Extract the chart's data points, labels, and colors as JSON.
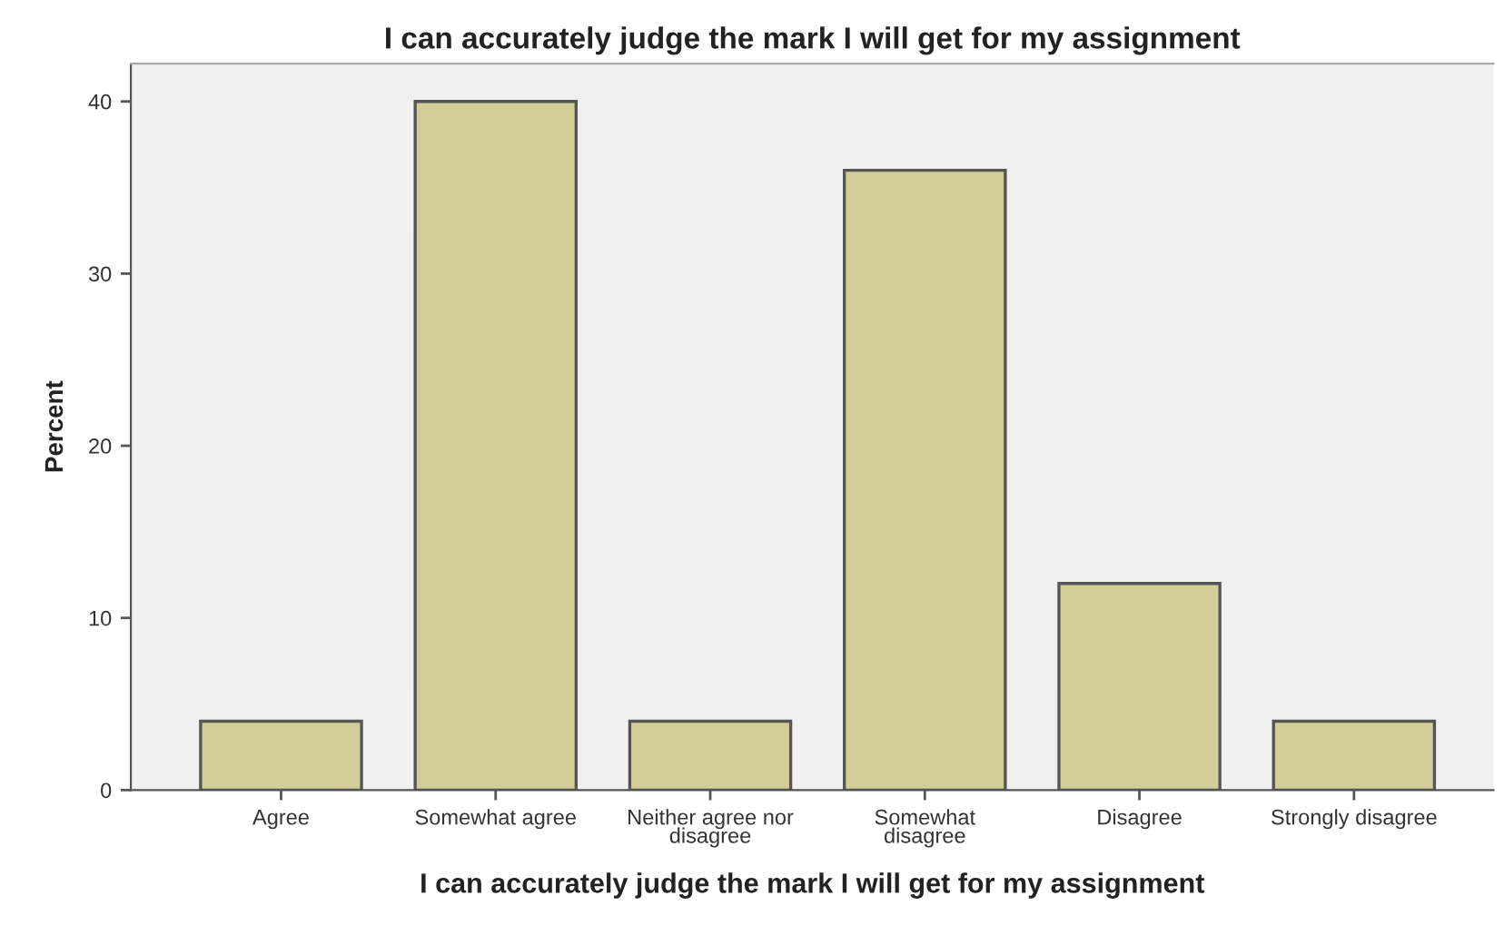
{
  "chart_data": {
    "type": "bar",
    "title": "I can accurately judge the mark I will get for my assignment",
    "xlabel": "I can accurately judge the mark I will get for my assignment",
    "ylabel": "Percent",
    "categories": [
      "Agree",
      "Somewhat agree",
      "Neither agree nor\ndisagree",
      "Somewhat\ndisagree",
      "Disagree",
      "Strongly disagree"
    ],
    "values": [
      4,
      40,
      4,
      36,
      12,
      4
    ],
    "color": "#d3ce97",
    "ylim": [
      0,
      42.2
    ],
    "yticks": [
      0,
      10,
      20,
      30,
      40
    ],
    "grid": false,
    "legend": false
  }
}
